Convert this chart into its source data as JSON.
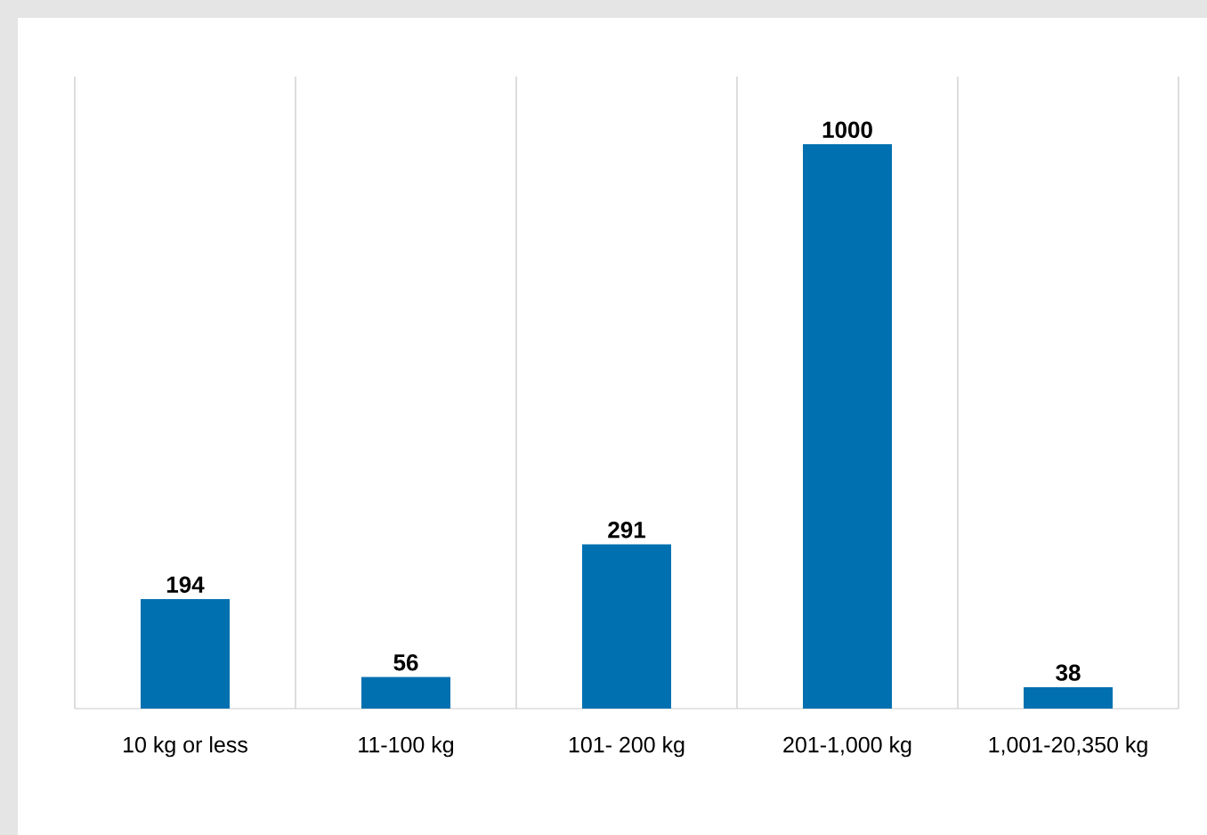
{
  "chart_data": {
    "type": "bar",
    "categories": [
      "10 kg or less",
      "11-100 kg",
      "101- 200 kg",
      "201-1,000 kg",
      "1,001-20,350 kg"
    ],
    "values": [
      194,
      56,
      291,
      1000,
      38
    ],
    "color": "#0070b0",
    "data_labels": true,
    "grid": "x"
  }
}
